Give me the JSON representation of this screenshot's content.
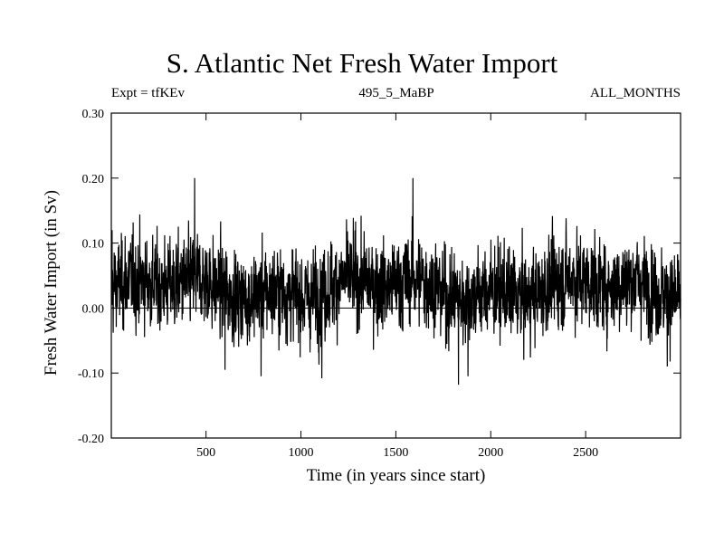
{
  "chart_data": {
    "type": "line",
    "title": "S. Atlantic Net Fresh Water Import",
    "subtitle_left": "Expt = tfKEv",
    "subtitle_center": "495_5_MaBP",
    "subtitle_right": "ALL_MONTHS",
    "xlabel": "Time (in years since start)",
    "ylabel": "Fresh Water Import (in Sv)",
    "xlim": [
      1,
      3000
    ],
    "ylim": [
      -0.2,
      0.3
    ],
    "xticks": [
      500,
      1000,
      1500,
      2000,
      2500
    ],
    "xtick_labels": [
      "500",
      "1000",
      "1500",
      "2000",
      "2500"
    ],
    "yticks": [
      -0.2,
      -0.1,
      0.0,
      0.1,
      0.2,
      0.3
    ],
    "ytick_labels": [
      "-0.20",
      "-0.10",
      "0.00",
      "0.10",
      "0.20",
      "0.30"
    ],
    "zero_line": true,
    "grid": false,
    "line_color": "#000000",
    "series": [
      {
        "n_points": 3000,
        "mean": 0.03,
        "std_approx": 0.035,
        "notable_points": [
          {
            "x": 5,
            "y": 0.12
          },
          {
            "x": 440,
            "y": 0.2
          },
          {
            "x": 600,
            "y": -0.095
          },
          {
            "x": 790,
            "y": -0.105
          },
          {
            "x": 1110,
            "y": -0.108
          },
          {
            "x": 1590,
            "y": 0.2
          },
          {
            "x": 1830,
            "y": -0.118
          },
          {
            "x": 1880,
            "y": -0.105
          },
          {
            "x": 2930,
            "y": -0.09
          }
        ]
      }
    ]
  }
}
